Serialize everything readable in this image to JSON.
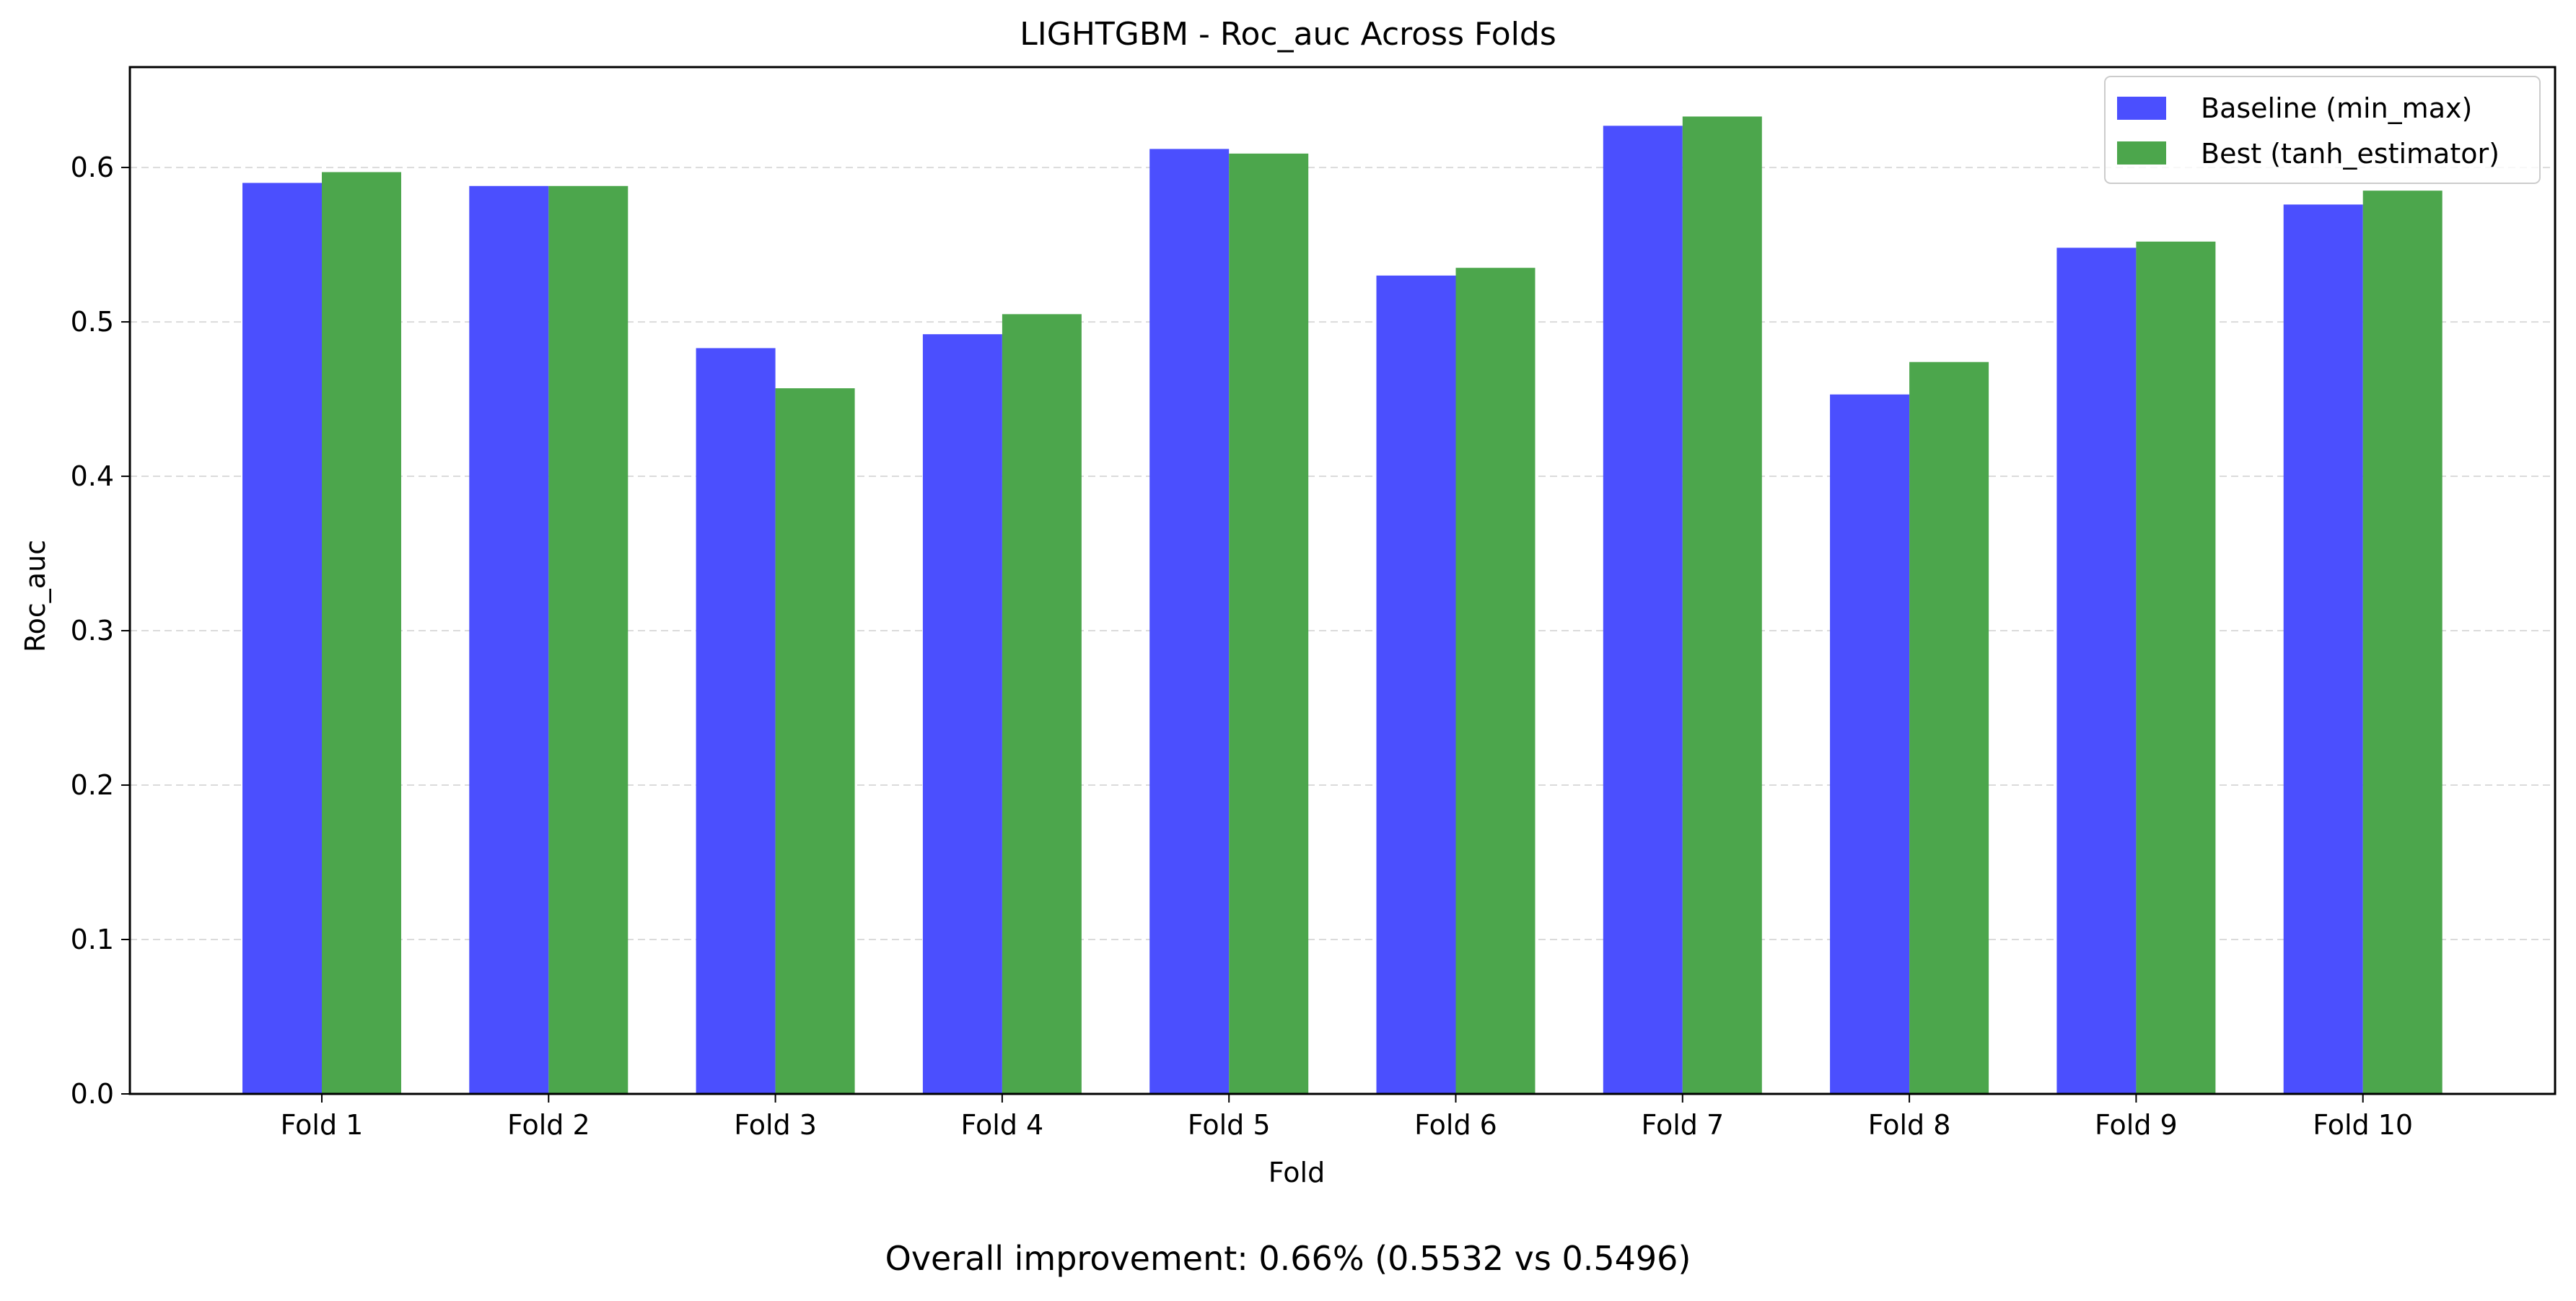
{
  "chart_data": {
    "type": "bar",
    "title": "LIGHTGBM - Roc_auc Across Folds",
    "xlabel": "Fold",
    "ylabel": "Roc_auc",
    "ylim": [
      0.0,
      0.665
    ],
    "yticks": [
      "0.0",
      "0.1",
      "0.2",
      "0.3",
      "0.4",
      "0.5",
      "0.6"
    ],
    "grid": "horizontal dashed",
    "legend_position": "top-right",
    "categories": [
      "Fold 1",
      "Fold 2",
      "Fold 3",
      "Fold 4",
      "Fold 5",
      "Fold 6",
      "Fold 7",
      "Fold 8",
      "Fold 9",
      "Fold 10"
    ],
    "series": [
      {
        "name": "Baseline (min_max)",
        "color": "#4b4ffe",
        "values": [
          0.59,
          0.588,
          0.483,
          0.492,
          0.612,
          0.53,
          0.627,
          0.453,
          0.548,
          0.576
        ]
      },
      {
        "name": "Best (tanh_estimator)",
        "color": "#4ca64c",
        "values": [
          0.597,
          0.588,
          0.457,
          0.505,
          0.609,
          0.535,
          0.633,
          0.474,
          0.552,
          0.585
        ]
      }
    ],
    "annotation": "Overall improvement: 0.66% (0.5532 vs 0.5496)"
  }
}
